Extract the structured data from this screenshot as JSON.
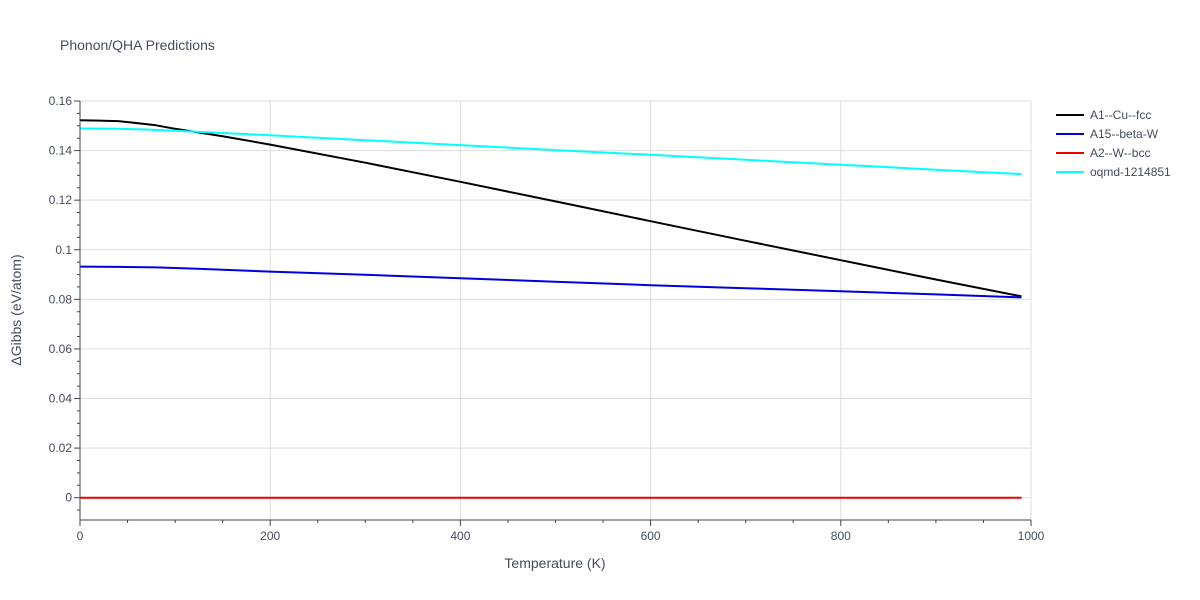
{
  "chart_data": {
    "type": "line",
    "title": "Phonon/QHA Predictions",
    "xlabel": "Temperature (K)",
    "ylabel": "ΔGibbs (eV/atom)",
    "xlim": [
      0,
      1000
    ],
    "ylim": [
      -0.009,
      0.16
    ],
    "x_ticks": [
      0,
      200,
      400,
      600,
      800,
      1000
    ],
    "x_tick_labels": [
      "0",
      "200",
      "400",
      "600",
      "800",
      "1000"
    ],
    "y_ticks": [
      0,
      0.02,
      0.04,
      0.06,
      0.08,
      0.1,
      0.12,
      0.14,
      0.16
    ],
    "y_tick_labels": [
      "0",
      "0.02",
      "0.04",
      "0.06",
      "0.08",
      "0.1",
      "0.12",
      "0.14",
      "0.16"
    ],
    "grid": true,
    "legend_position": "top-right",
    "series": [
      {
        "name": "A1--Cu--fcc",
        "color": "#000000",
        "x": [
          0,
          20,
          40,
          60,
          80,
          100,
          150,
          200,
          300,
          400,
          500,
          600,
          700,
          800,
          900,
          990
        ],
        "y": [
          0.1522,
          0.1521,
          0.1519,
          0.1511,
          0.1502,
          0.1488,
          0.1458,
          0.1424,
          0.1351,
          0.1274,
          0.1195,
          0.1115,
          0.1036,
          0.0958,
          0.088,
          0.0812
        ]
      },
      {
        "name": "A15--beta-W",
        "color": "#0000dd",
        "x": [
          0,
          40,
          80,
          120,
          200,
          300,
          400,
          500,
          600,
          700,
          800,
          900,
          990
        ],
        "y": [
          0.0932,
          0.0931,
          0.0929,
          0.0924,
          0.0912,
          0.0899,
          0.0885,
          0.0871,
          0.0857,
          0.0845,
          0.0833,
          0.082,
          0.0808
        ]
      },
      {
        "name": "A2--W--bcc",
        "color": "#ee0000",
        "x": [
          0,
          200,
          400,
          600,
          800,
          990
        ],
        "y": [
          0,
          0,
          0,
          0,
          0,
          0
        ]
      },
      {
        "name": "oqmd-1214851",
        "color": "#00ffff",
        "x": [
          0,
          40,
          70,
          100,
          200,
          300,
          400,
          500,
          600,
          700,
          800,
          900,
          990
        ],
        "y": [
          0.1489,
          0.1488,
          0.1485,
          0.148,
          0.1462,
          0.1442,
          0.1422,
          0.1402,
          0.1383,
          0.1363,
          0.1343,
          0.1323,
          0.1305
        ]
      }
    ]
  }
}
